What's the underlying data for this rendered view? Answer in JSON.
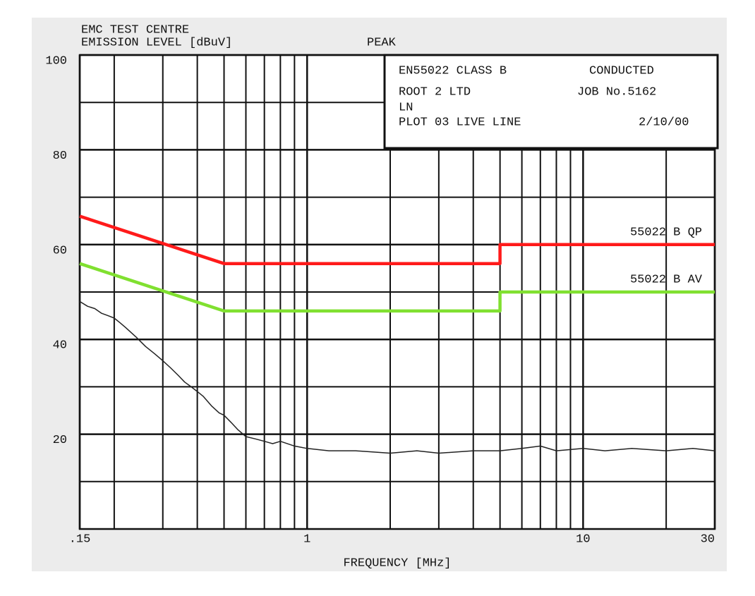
{
  "chart_data": {
    "type": "line",
    "title": "EMC TEST CENTRE",
    "ylabel": "EMISSION LEVEL [dBuV]",
    "subtitle": "PEAK",
    "xlabel": "FREQUENCY [MHz]",
    "info": {
      "standard": "EN55022 CLASS B",
      "mode": "CONDUCTED",
      "client": "ROOT 2 LTD",
      "job": "JOB No.5162",
      "line": "LN",
      "plot": "PLOT 03 LIVE LINE",
      "date": "2/10/00"
    },
    "xscale": "log",
    "xlim": [
      0.15,
      30
    ],
    "ylim": [
      0,
      100
    ],
    "xticks": [
      {
        "value": 0.15,
        "label": ".15"
      },
      1,
      10,
      30
    ],
    "yticks": [
      20,
      40,
      60,
      80,
      100
    ],
    "xgrid_minor": [
      0.2,
      0.3,
      0.4,
      0.5,
      0.6,
      0.7,
      0.8,
      0.9,
      2,
      3,
      4,
      5,
      6,
      7,
      8,
      9,
      20
    ],
    "ygrid_minor": [
      10,
      30,
      50,
      70,
      90
    ],
    "grid": true,
    "series": [
      {
        "name": "55022 B QP",
        "color": "#ff1a1a",
        "x": [
          0.15,
          0.5,
          5,
          5,
          30
        ],
        "values": [
          66,
          56,
          56,
          60,
          60
        ]
      },
      {
        "name": "55022 B AV",
        "color": "#80e030",
        "x": [
          0.15,
          0.5,
          5,
          5,
          30
        ],
        "values": [
          56,
          46,
          46,
          50,
          50
        ]
      },
      {
        "color": "#222222",
        "x": [
          0.15,
          0.16,
          0.17,
          0.18,
          0.19,
          0.2,
          0.21,
          0.22,
          0.24,
          0.26,
          0.28,
          0.3,
          0.32,
          0.34,
          0.36,
          0.38,
          0.4,
          0.42,
          0.45,
          0.48,
          0.5,
          0.53,
          0.56,
          0.6,
          0.65,
          0.7,
          0.75,
          0.8,
          0.9,
          1,
          1.2,
          1.5,
          2,
          2.5,
          3,
          4,
          5,
          6,
          7,
          8,
          10,
          12,
          15,
          20,
          25,
          30
        ],
        "values": [
          48,
          47,
          46.5,
          45.5,
          45,
          44.5,
          43.5,
          42.5,
          40.5,
          38.5,
          37,
          35.5,
          34,
          32.5,
          31,
          30,
          29,
          28,
          26,
          24.5,
          24,
          22.5,
          21,
          19.5,
          19,
          18.5,
          18,
          18.5,
          17.5,
          17,
          16.5,
          16.5,
          16,
          16.5,
          16,
          16.5,
          16.5,
          17,
          17.5,
          16.5,
          17,
          16.5,
          17,
          16.5,
          17,
          16.5
        ]
      }
    ]
  }
}
